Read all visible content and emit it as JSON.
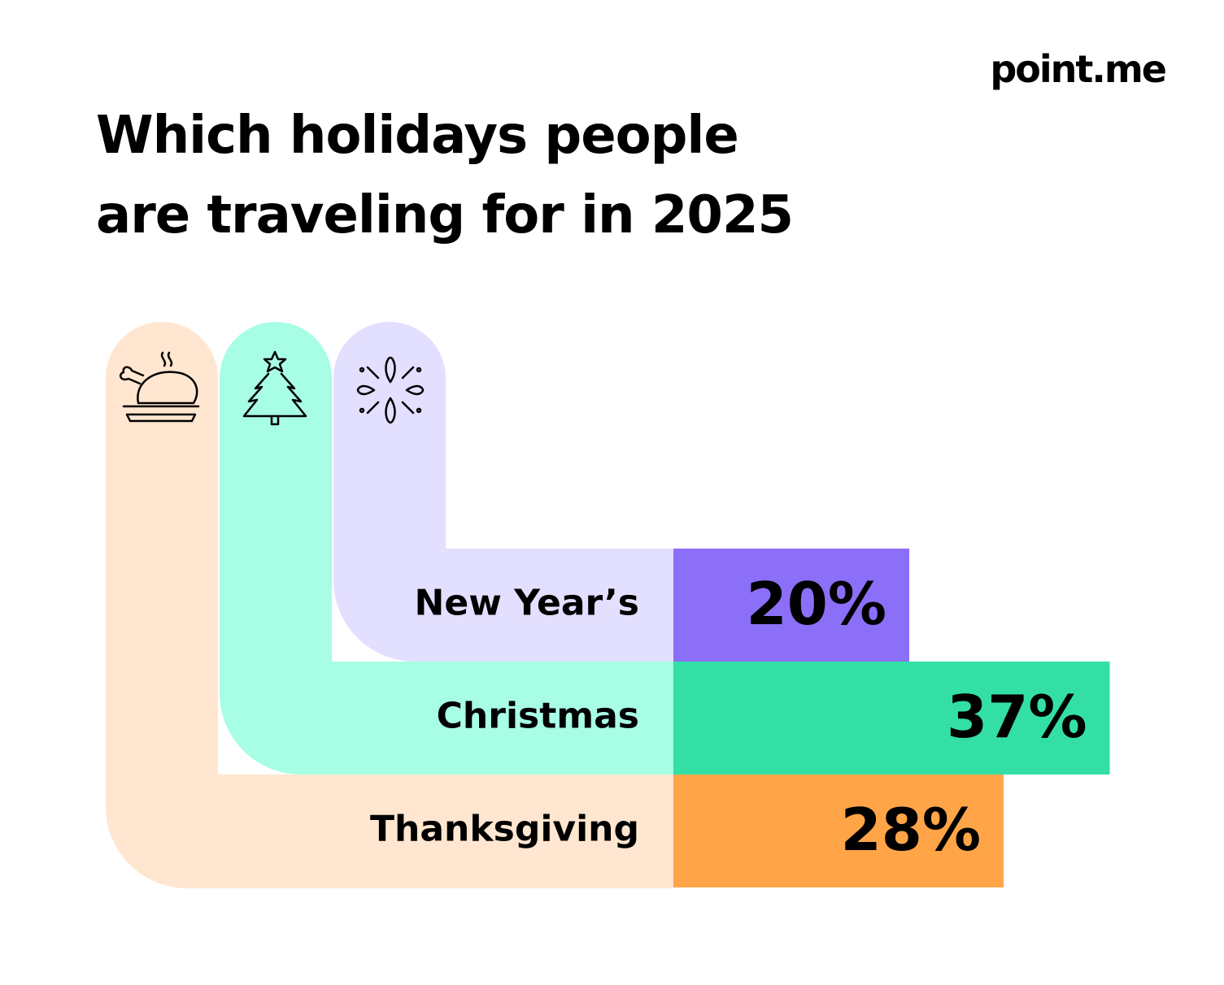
{
  "chart_data": {
    "type": "bar",
    "orientation": "horizontal",
    "title": "Which holidays people are traveling for in 2025",
    "logo": "point.me",
    "categories": [
      "New Year’s",
      "Christmas",
      "Thanksgiving"
    ],
    "values": [
      20,
      37,
      28
    ],
    "value_labels": [
      "20%",
      "37%",
      "28%"
    ],
    "colors": [
      "#8b6ff8",
      "#33dfa5",
      "#ffa548"
    ]
  }
}
